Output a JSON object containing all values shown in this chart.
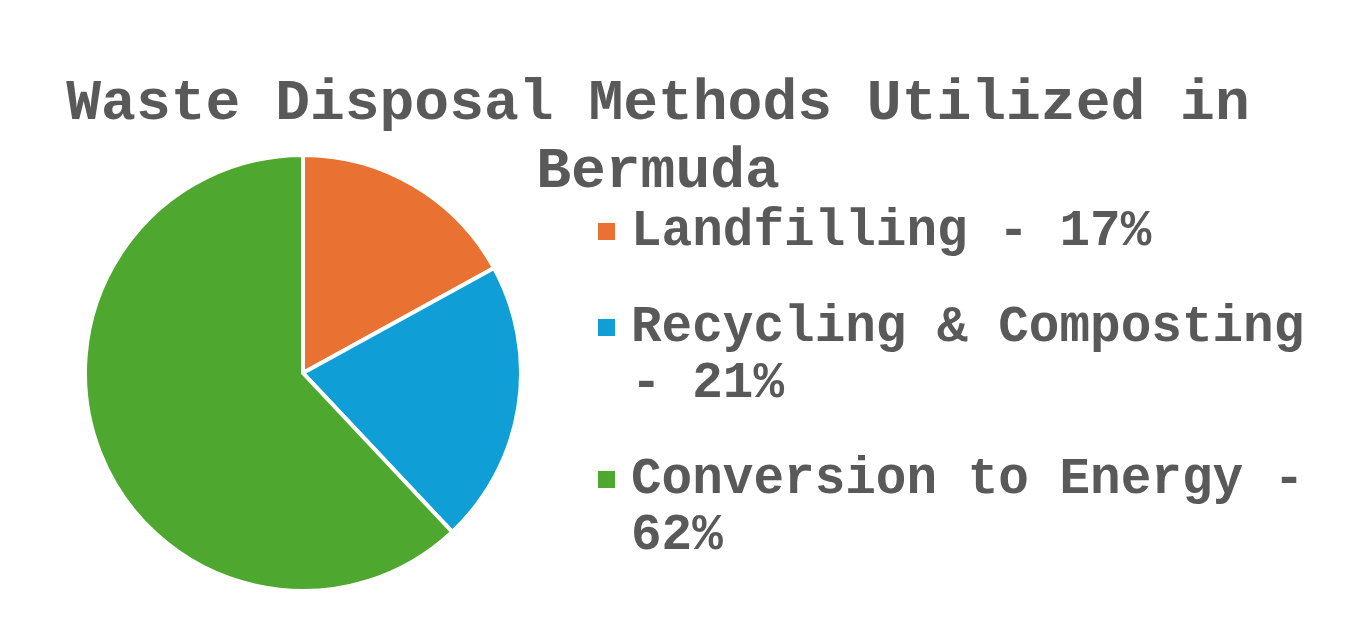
{
  "chart_data": {
    "type": "pie",
    "title": "Waste Disposal Methods Utilized in Bermuda",
    "categories": [
      "Landfilling - 17%",
      "Recycling & Composting - 21%",
      "Conversion to Energy - 62%"
    ],
    "values": [
      17,
      21,
      62
    ],
    "colors": [
      "#e97132",
      "#0f9ed5",
      "#4ea72e"
    ],
    "legend": "right"
  }
}
